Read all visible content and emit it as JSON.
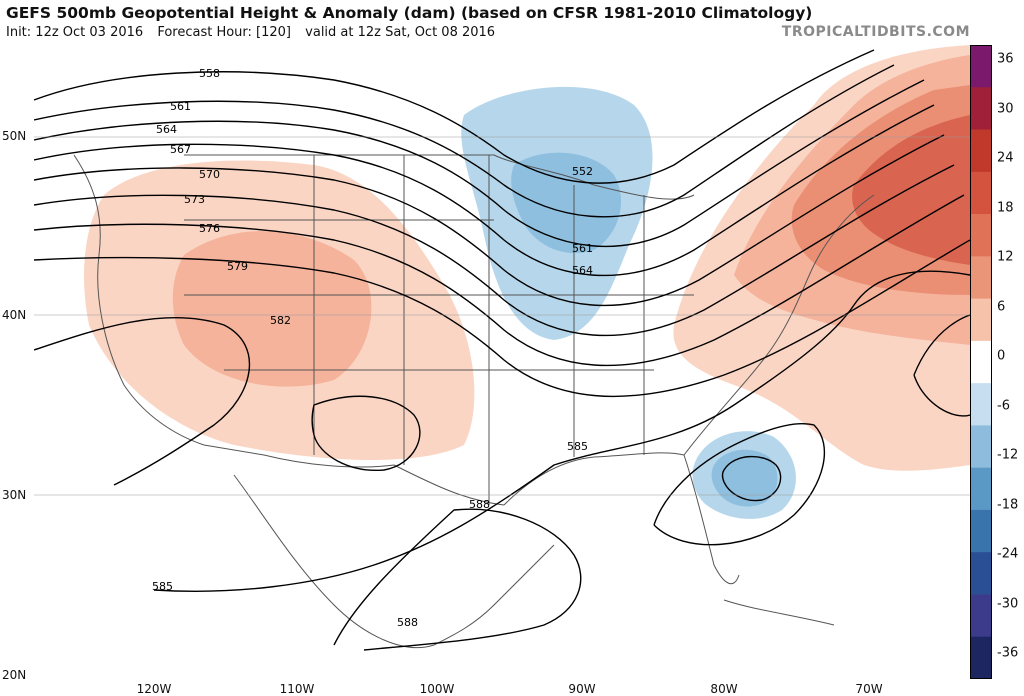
{
  "header": {
    "title": "GEFS 500mb Geopotential Height & Anomaly (dam) (based on CFSR 1981-2010 Climatology)",
    "init": "Init: 12z Oct 03 2016",
    "forecast_hour": "Forecast Hour: [120]",
    "valid": "valid at 12z Sat, Oct 08 2016",
    "brand": "TROPICALTIDBITS.COM"
  },
  "map": {
    "lat_labels": [
      "50N",
      "40N",
      "30N",
      "20N"
    ],
    "lon_labels": [
      "120W",
      "110W",
      "100W",
      "90W",
      "80W",
      "70W"
    ],
    "contour_labels": [
      "558",
      "561",
      "564",
      "567",
      "570",
      "573",
      "576",
      "579",
      "582",
      "585",
      "588",
      "552",
      "561",
      "564",
      "585",
      "588",
      "585",
      "588"
    ],
    "colors": {
      "land_border": "#555555",
      "contour": "#000000",
      "warm_1": "#fbd5c4",
      "warm_2": "#f5b39c",
      "warm_3": "#ea8f74",
      "warm_4": "#d9644f",
      "cool_1": "#b6d7eb",
      "cool_2": "#8fbfdf"
    }
  },
  "colorbar": {
    "labels": [
      "36",
      "30",
      "24",
      "18",
      "12",
      "6",
      "0",
      "-6",
      "-12",
      "-18",
      "-24",
      "-30",
      "-36"
    ],
    "colors": [
      "#7b1a6d",
      "#a0203a",
      "#c0392b",
      "#d3533f",
      "#e07258",
      "#ea9478",
      "#f6c2aa",
      "#ffffff",
      "#c6def0",
      "#8dbcdc",
      "#5a98c6",
      "#3a74ad",
      "#2a4f95",
      "#3c3a8a",
      "#1d2660"
    ]
  }
}
